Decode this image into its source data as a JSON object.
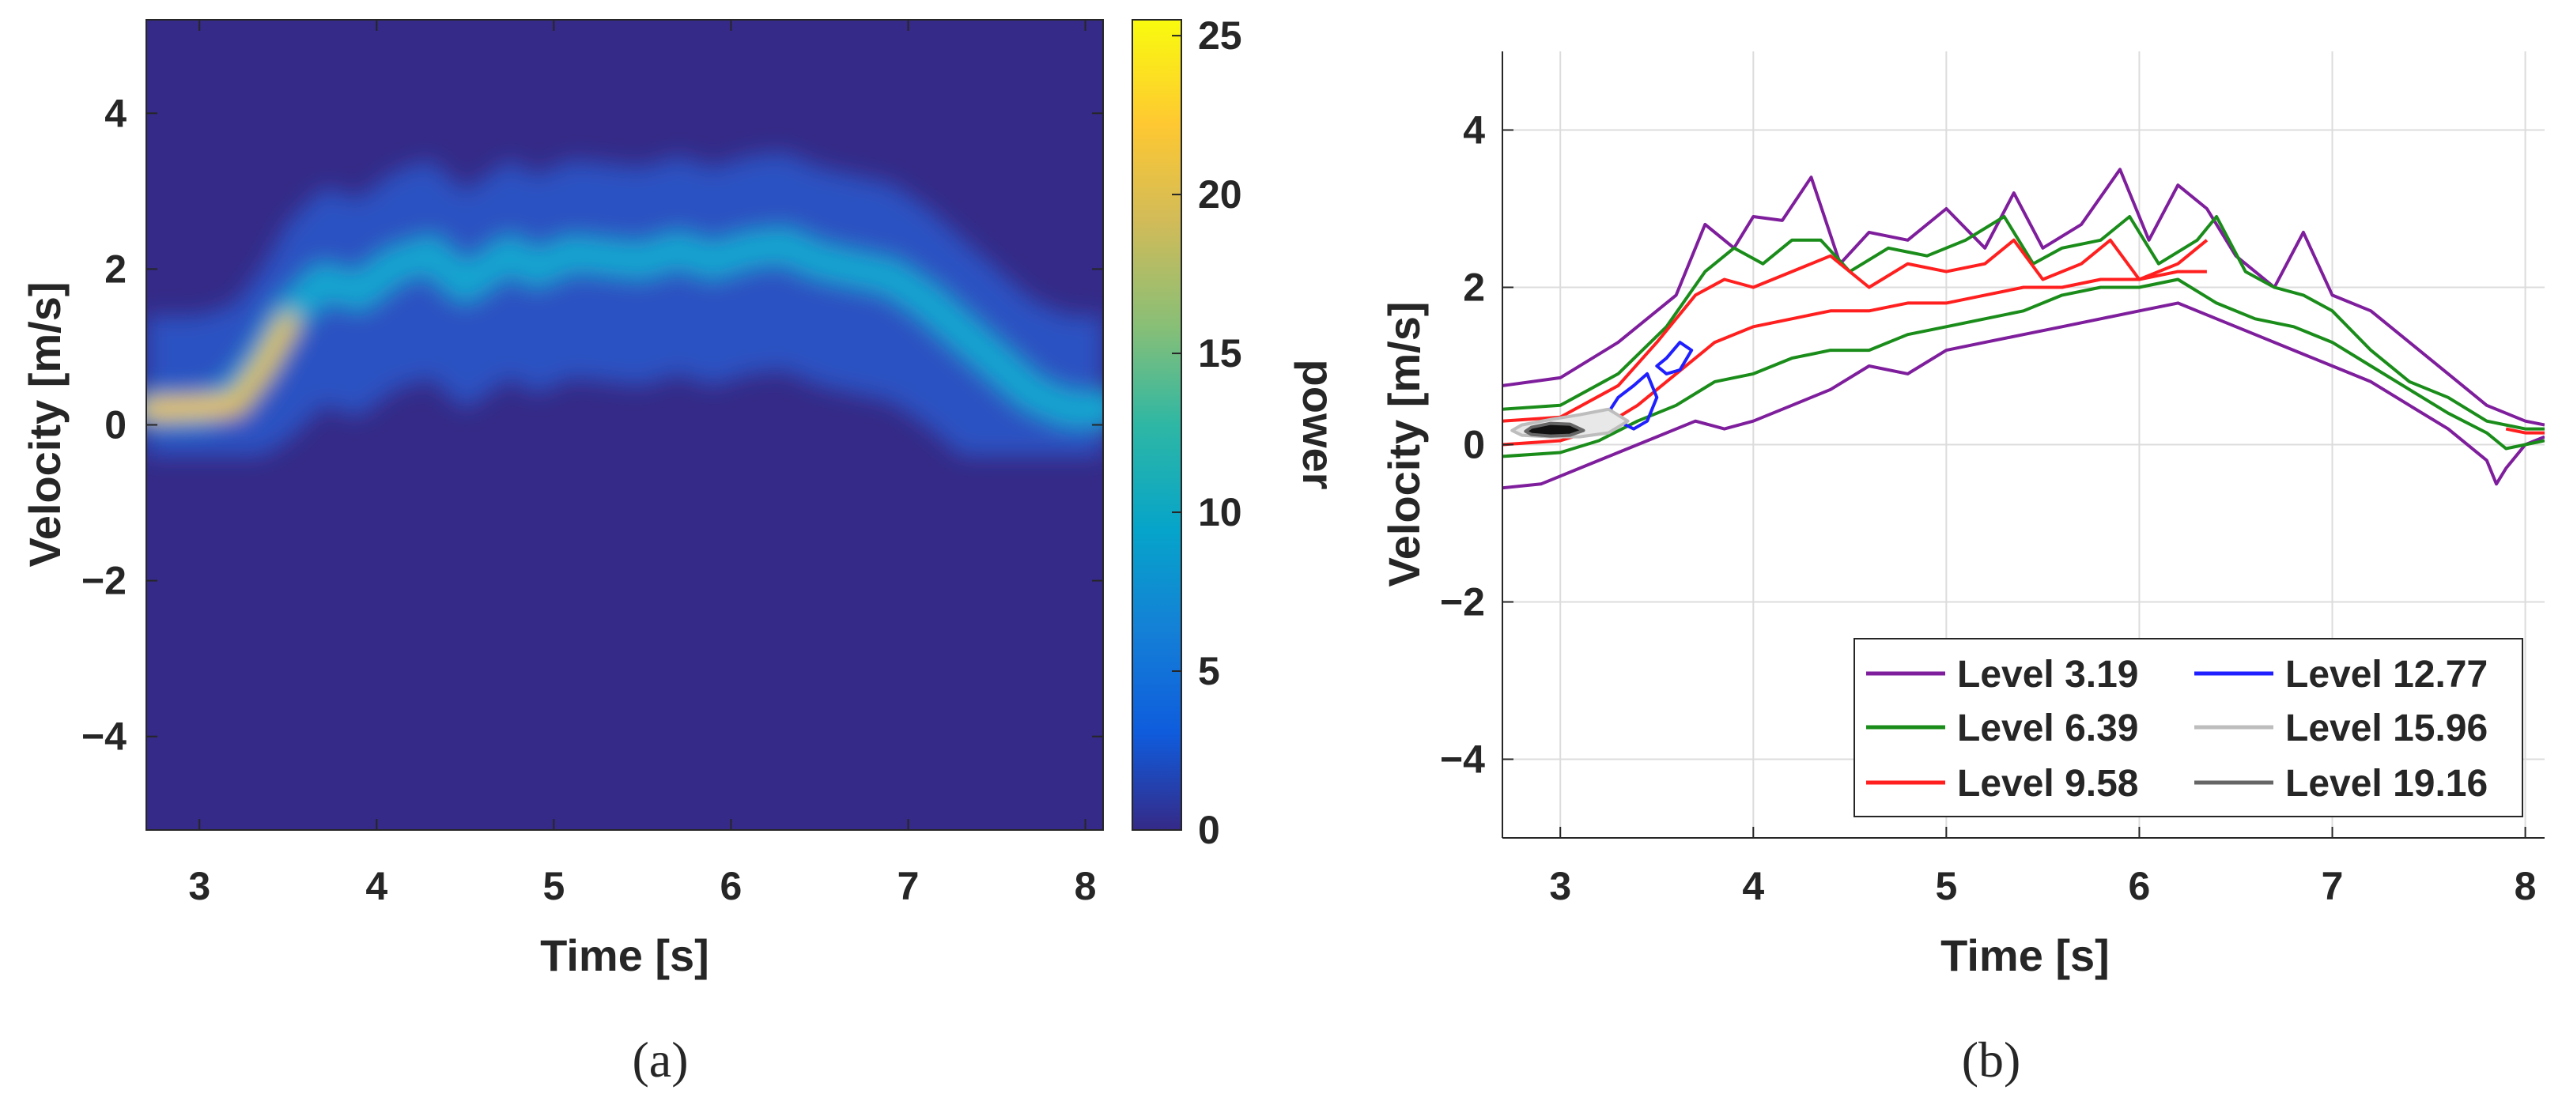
{
  "panels": [
    {
      "id": "a",
      "caption": "(a)"
    },
    {
      "id": "b",
      "caption": "(b)"
    }
  ],
  "chart_data": [
    {
      "type": "heatmap",
      "panel": "(a)",
      "xlabel": "Time [s]",
      "ylabel": "Velocity [m/s]",
      "xlim": [
        2.7,
        8.1
      ],
      "ylim": [
        -5.2,
        5.2
      ],
      "xticks": [
        3,
        4,
        5,
        6,
        7,
        8
      ],
      "xtick_labels": [
        "3",
        "4",
        "5",
        "6",
        "7",
        "8"
      ],
      "yticks": [
        4,
        2,
        0,
        -2,
        -4
      ],
      "ytick_labels": [
        "4",
        "2",
        "0",
        "−2",
        "−4"
      ],
      "colormap": "parula",
      "colorbar": {
        "label": "power",
        "limits": [
          0,
          25.5
        ],
        "ticks": [
          25,
          20,
          15,
          10,
          5,
          0
        ],
        "tick_labels": [
          "25",
          "20",
          "15",
          "10",
          "5",
          "0"
        ]
      },
      "ridge": {
        "x": [
          2.7,
          3.0,
          3.2,
          3.35,
          3.5,
          3.7,
          3.9,
          4.1,
          4.3,
          4.5,
          4.75,
          4.9,
          5.1,
          5.3,
          5.5,
          5.7,
          5.9,
          6.1,
          6.3,
          6.5,
          6.7,
          6.9,
          7.1,
          7.3,
          7.5,
          7.7,
          7.9,
          8.1
        ],
        "y": [
          0.2,
          0.2,
          0.35,
          0.8,
          1.4,
          1.85,
          1.7,
          2.05,
          2.2,
          1.8,
          2.2,
          2.0,
          2.2,
          2.15,
          2.1,
          2.25,
          2.1,
          2.25,
          2.3,
          2.1,
          2.0,
          1.9,
          1.6,
          1.2,
          0.8,
          0.4,
          0.2,
          0.2
        ]
      },
      "peak_power": 25
    },
    {
      "type": "line",
      "panel": "(b)",
      "subtype": "contour",
      "xlabel": "Time [s]",
      "ylabel": "Velocity [m/s]",
      "xlim": [
        2.7,
        8.1
      ],
      "ylim": [
        -5,
        5
      ],
      "grid": true,
      "legend_position": "bottom-right",
      "xticks": [
        3,
        4,
        5,
        6,
        7,
        8
      ],
      "xtick_labels": [
        "3",
        "4",
        "5",
        "6",
        "7",
        "8"
      ],
      "yticks": [
        4,
        2,
        0,
        -2,
        -4
      ],
      "ytick_labels": [
        "4",
        "2",
        "0",
        "−2",
        "−4"
      ],
      "series": [
        {
          "name": "Level 3.19",
          "level": 3.19,
          "color": "#7e1e9c"
        },
        {
          "name": "Level 6.39",
          "level": 6.39,
          "color": "#1a8c1a"
        },
        {
          "name": "Level 9.58",
          "level": 9.58,
          "color": "#ff1f1f"
        },
        {
          "name": "Level 12.77",
          "level": 12.77,
          "color": "#1f1fff"
        },
        {
          "name": "Level 15.96",
          "level": 15.96,
          "color": "#bdbdbd"
        },
        {
          "name": "Level 19.16",
          "level": 19.16,
          "color": "#666666"
        }
      ],
      "contours": {
        "level_3_19_upper": {
          "x": [
            2.7,
            3.0,
            3.3,
            3.6,
            3.75,
            3.9,
            4.0,
            4.15,
            4.3,
            4.45,
            4.6,
            4.8,
            5.0,
            5.2,
            5.35,
            5.5,
            5.7,
            5.9,
            6.05,
            6.2,
            6.35,
            6.5,
            6.7,
            6.85,
            7.0,
            7.2,
            7.4,
            7.6,
            7.8,
            8.0,
            8.1
          ],
          "y": [
            0.75,
            0.85,
            1.3,
            1.9,
            2.8,
            2.5,
            2.9,
            2.85,
            3.4,
            2.3,
            2.7,
            2.6,
            3.0,
            2.5,
            3.2,
            2.5,
            2.8,
            3.5,
            2.6,
            3.3,
            3.0,
            2.4,
            2.0,
            2.7,
            1.9,
            1.7,
            1.3,
            0.9,
            0.5,
            0.3,
            0.25
          ]
        },
        "level_3_19_lower": {
          "x": [
            2.7,
            2.9,
            3.1,
            3.3,
            3.5,
            3.7,
            3.85,
            4.0,
            4.2,
            4.4,
            4.6,
            4.8,
            5.0,
            5.2,
            5.4,
            5.6,
            5.8,
            6.0,
            6.2,
            6.4,
            6.6,
            6.8,
            7.0,
            7.2,
            7.4,
            7.6,
            7.8,
            7.85,
            7.9,
            8.0,
            8.1
          ],
          "y": [
            -0.55,
            -0.5,
            -0.3,
            -0.1,
            0.1,
            0.3,
            0.2,
            0.3,
            0.5,
            0.7,
            1.0,
            0.9,
            1.2,
            1.3,
            1.4,
            1.5,
            1.6,
            1.7,
            1.8,
            1.6,
            1.4,
            1.2,
            1.0,
            0.8,
            0.5,
            0.2,
            -0.2,
            -0.5,
            -0.3,
            0.0,
            0.1
          ]
        },
        "level_6_39_upper": {
          "x": [
            2.7,
            3.0,
            3.3,
            3.55,
            3.75,
            3.9,
            4.05,
            4.2,
            4.35,
            4.5,
            4.7,
            4.9,
            5.1,
            5.3,
            5.45,
            5.6,
            5.8,
            5.95,
            6.1,
            6.3,
            6.4,
            6.55,
            6.7,
            6.85,
            7.0,
            7.2,
            7.4,
            7.6,
            7.8,
            8.0,
            8.1
          ],
          "y": [
            0.45,
            0.5,
            0.9,
            1.5,
            2.2,
            2.5,
            2.3,
            2.6,
            2.6,
            2.2,
            2.5,
            2.4,
            2.6,
            2.9,
            2.3,
            2.5,
            2.6,
            2.9,
            2.3,
            2.6,
            2.9,
            2.2,
            2.0,
            1.9,
            1.7,
            1.2,
            0.8,
            0.6,
            0.3,
            0.2,
            0.2
          ]
        },
        "level_6_39_lower": {
          "x": [
            2.7,
            3.0,
            3.2,
            3.4,
            3.6,
            3.8,
            4.0,
            4.2,
            4.4,
            4.6,
            4.8,
            5.0,
            5.2,
            5.4,
            5.6,
            5.8,
            6.0,
            6.2,
            6.4,
            6.6,
            6.8,
            7.0,
            7.2,
            7.4,
            7.6,
            7.8,
            7.9,
            8.0,
            8.1
          ],
          "y": [
            -0.15,
            -0.1,
            0.05,
            0.3,
            0.5,
            0.8,
            0.9,
            1.1,
            1.2,
            1.2,
            1.4,
            1.5,
            1.6,
            1.7,
            1.9,
            2.0,
            2.0,
            2.1,
            1.8,
            1.6,
            1.5,
            1.3,
            1.0,
            0.7,
            0.4,
            0.15,
            -0.05,
            0.0,
            0.05
          ]
        },
        "level_9_58_upper": {
          "x": [
            2.7,
            3.0,
            3.3,
            3.5,
            3.7,
            3.85,
            4.0,
            4.2,
            4.4,
            4.6,
            4.8,
            5.0,
            5.2,
            5.35,
            5.5,
            5.7,
            5.85,
            6.0,
            6.2,
            6.35
          ],
          "y": [
            0.3,
            0.35,
            0.75,
            1.3,
            1.9,
            2.1,
            2.0,
            2.2,
            2.4,
            2.0,
            2.3,
            2.2,
            2.3,
            2.6,
            2.1,
            2.3,
            2.6,
            2.1,
            2.3,
            2.6
          ]
        },
        "level_9_58_lower": {
          "x": [
            2.7,
            3.0,
            3.2,
            3.4,
            3.6,
            3.8,
            4.0,
            4.2,
            4.4,
            4.6,
            4.8,
            5.0,
            5.2,
            5.4,
            5.6,
            5.8,
            6.0,
            6.2,
            6.35
          ],
          "y": [
            0.0,
            0.05,
            0.2,
            0.5,
            0.9,
            1.3,
            1.5,
            1.6,
            1.7,
            1.7,
            1.8,
            1.8,
            1.9,
            2.0,
            2.0,
            2.1,
            2.1,
            2.2,
            2.2
          ]
        },
        "level_9_58_tail": {
          "x": [
            7.9,
            8.0,
            8.1
          ],
          "y": [
            0.2,
            0.15,
            0.15
          ]
        },
        "level_12_77_loop": {
          "x": [
            3.3,
            3.38,
            3.45,
            3.5,
            3.45,
            3.38,
            3.3,
            3.26,
            3.3
          ],
          "y": [
            0.6,
            0.75,
            0.9,
            0.6,
            0.3,
            0.2,
            0.3,
            0.45,
            0.6
          ]
        },
        "level_12_77_loop2": {
          "x": [
            3.55,
            3.62,
            3.68,
            3.62,
            3.55,
            3.5,
            3.55
          ],
          "y": [
            1.1,
            1.3,
            1.2,
            0.95,
            0.9,
            1.0,
            1.1
          ]
        },
        "level_15_96_loop": {
          "x": [
            2.8,
            2.95,
            3.1,
            3.25,
            3.35,
            3.25,
            3.1,
            2.95,
            2.8,
            2.75,
            2.8
          ],
          "y": [
            0.25,
            0.32,
            0.38,
            0.45,
            0.3,
            0.15,
            0.1,
            0.1,
            0.12,
            0.18,
            0.25
          ]
        },
        "level_19_16_loop": {
          "x": [
            2.85,
            2.95,
            3.05,
            3.12,
            3.05,
            2.95,
            2.85,
            2.82,
            2.85
          ],
          "y": [
            0.22,
            0.27,
            0.26,
            0.18,
            0.12,
            0.11,
            0.13,
            0.17,
            0.22
          ]
        }
      }
    }
  ]
}
